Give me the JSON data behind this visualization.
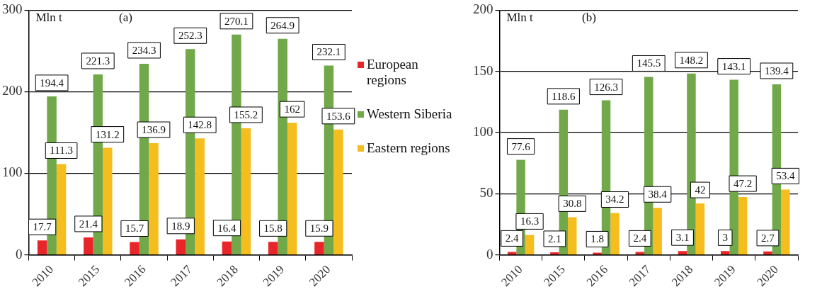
{
  "chart_data": [
    {
      "type": "bar",
      "title": "(a)",
      "ylabel": "Mln t",
      "categories": [
        "2010",
        "2015",
        "2016",
        "2017",
        "2018",
        "2019",
        "2020"
      ],
      "series": [
        {
          "name": "European regions",
          "color": "#e8262a",
          "values": [
            17.7,
            21.4,
            15.7,
            18.9,
            16.4,
            15.8,
            15.9
          ]
        },
        {
          "name": "Western Siberia",
          "color": "#70a84a",
          "values": [
            194.4,
            221.3,
            234.3,
            252.3,
            270.1,
            264.9,
            232.1
          ]
        },
        {
          "name": "Eastern regions",
          "color": "#f5be1e",
          "values": [
            111.3,
            131.2,
            136.9,
            142.8,
            155.2,
            162,
            153.6
          ]
        }
      ],
      "ylim": [
        0,
        300
      ],
      "yticks": [
        0,
        100,
        200,
        300
      ],
      "grid": "y",
      "legend": "right",
      "data_labels": true
    },
    {
      "type": "bar",
      "title": "(b)",
      "ylabel": "Mln t",
      "categories": [
        "2010",
        "2015",
        "2016",
        "2017",
        "2018",
        "2019",
        "2020"
      ],
      "series": [
        {
          "color": "#e8262a",
          "values": [
            2.4,
            2.1,
            1.8,
            2.4,
            3.1,
            3,
            2.7
          ]
        },
        {
          "color": "#70a84a",
          "values": [
            77.6,
            118.6,
            126.3,
            145.5,
            148.2,
            143.1,
            139.4
          ]
        },
        {
          "color": "#f5be1e",
          "values": [
            16.3,
            30.8,
            34.2,
            38.4,
            42,
            47.2,
            53.4
          ]
        }
      ],
      "ylim": [
        0,
        200
      ],
      "yticks": [
        0,
        50,
        100,
        150,
        200
      ],
      "grid": "y",
      "data_labels": true
    }
  ]
}
